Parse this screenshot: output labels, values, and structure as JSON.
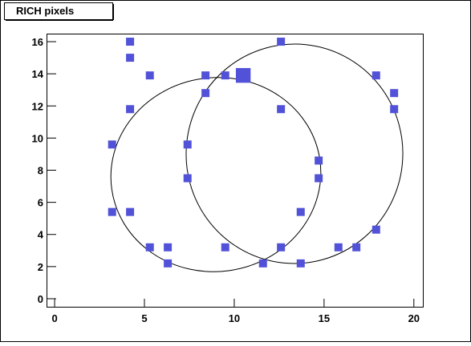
{
  "chart_data": {
    "type": "scatter",
    "title": "RICH pixels",
    "x": [
      4.2,
      12.6,
      4.2,
      5.3,
      8.4,
      9.5,
      10.5,
      17.9,
      8.4,
      18.9,
      4.2,
      12.6,
      18.9,
      3.2,
      7.4,
      14.7,
      7.4,
      14.7,
      3.2,
      4.2,
      13.7,
      17.9,
      5.3,
      6.3,
      9.5,
      12.6,
      15.8,
      16.8,
      6.3,
      11.6,
      13.7
    ],
    "y": [
      16,
      16,
      15,
      13.9,
      13.9,
      13.9,
      13.9,
      13.9,
      12.8,
      12.8,
      11.8,
      11.8,
      11.8,
      9.6,
      9.6,
      8.6,
      7.5,
      7.5,
      5.4,
      5.4,
      5.4,
      4.3,
      3.2,
      3.2,
      3.2,
      3.2,
      3.2,
      3.2,
      2.2,
      2.2,
      2.2
    ],
    "sizes": [
      1,
      1,
      1,
      1,
      1,
      1,
      2,
      1,
      1,
      1,
      1,
      1,
      1,
      1,
      1,
      1,
      1,
      1,
      1,
      1,
      1,
      1,
      1,
      1,
      1,
      1,
      1,
      1,
      1,
      1,
      1
    ],
    "color": "#5252d9",
    "xlim": [
      -0.45,
      20.5
    ],
    "xticks": [
      0,
      5,
      10,
      15,
      20
    ],
    "ylim": [
      -0.5,
      16.5
    ],
    "yticks": [
      0,
      2,
      4,
      6,
      8,
      10,
      12,
      14,
      16
    ]
  }
}
